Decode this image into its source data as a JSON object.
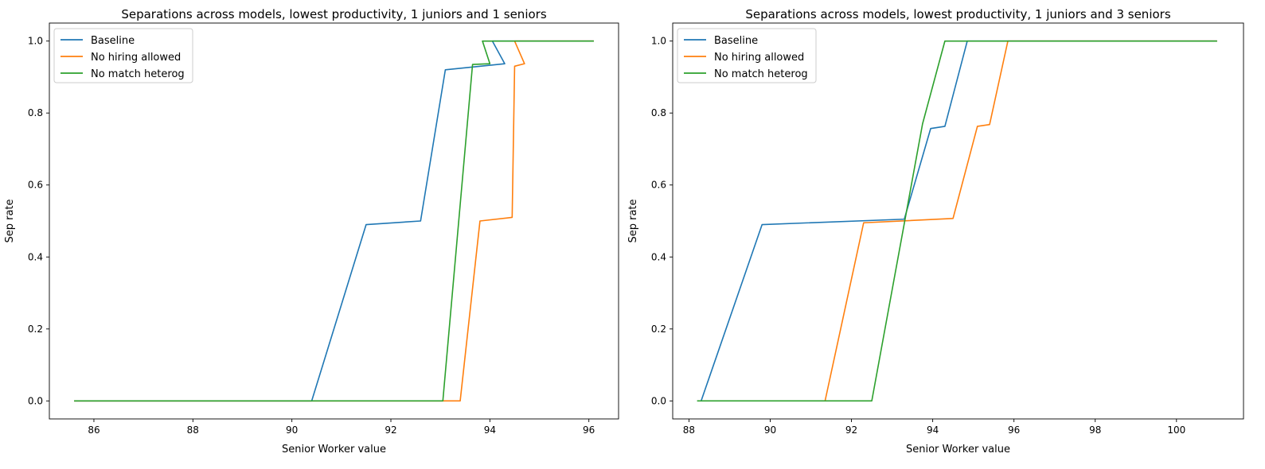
{
  "chart_data": [
    {
      "type": "line",
      "title": "Separations across models, lowest productivity, 1 juniors and 1 seniors",
      "xlabel": "Senior Worker value",
      "ylabel": "Sep rate",
      "xlim": [
        85.1,
        96.6
      ],
      "ylim": [
        -0.05,
        1.05
      ],
      "xticks": [
        86,
        88,
        90,
        92,
        94,
        96
      ],
      "xtick_labels": [
        "86",
        "88",
        "90",
        "92",
        "94",
        "96"
      ],
      "yticks": [
        0.0,
        0.2,
        0.4,
        0.6,
        0.8,
        1.0
      ],
      "ytick_labels": [
        "0.0",
        "0.2",
        "0.4",
        "0.6",
        "0.8",
        "1.0"
      ],
      "grid": false,
      "legend_position": "top-left",
      "series": [
        {
          "name": "Baseline",
          "color": "#1f77b4",
          "x": [
            85.6,
            90.4,
            91.5,
            92.6,
            93.1,
            94.3,
            94.05,
            94.4,
            96.1
          ],
          "y": [
            0.0,
            0.0,
            0.49,
            0.5,
            0.92,
            0.937,
            1.0,
            1.0,
            1.0
          ]
        },
        {
          "name": "No hiring allowed",
          "color": "#ff7f0e",
          "x": [
            85.6,
            93.4,
            93.8,
            94.45,
            94.5,
            94.7,
            94.5,
            94.6,
            96.1
          ],
          "y": [
            0.0,
            0.0,
            0.5,
            0.51,
            0.93,
            0.937,
            1.0,
            1.0,
            1.0
          ]
        },
        {
          "name": "No match heterog",
          "color": "#2ca02c",
          "x": [
            85.6,
            93.05,
            93.65,
            94.0,
            93.85,
            94.2,
            96.1
          ],
          "y": [
            0.0,
            0.0,
            0.935,
            0.937,
            1.0,
            1.0,
            1.0
          ]
        }
      ]
    },
    {
      "type": "line",
      "title": "Separations across models, lowest productivity, 1 juniors and 3 seniors",
      "xlabel": "Senior Worker value",
      "ylabel": "Sep rate",
      "xlim": [
        87.6,
        101.65
      ],
      "ylim": [
        -0.05,
        1.05
      ],
      "xticks": [
        88,
        90,
        92,
        94,
        96,
        98,
        100
      ],
      "xtick_labels": [
        "88",
        "90",
        "92",
        "94",
        "96",
        "98",
        "100"
      ],
      "yticks": [
        0.0,
        0.2,
        0.4,
        0.6,
        0.8,
        1.0
      ],
      "ytick_labels": [
        "0.0",
        "0.2",
        "0.4",
        "0.6",
        "0.8",
        "1.0"
      ],
      "grid": false,
      "legend_position": "top-left",
      "series": [
        {
          "name": "Baseline",
          "color": "#1f77b4",
          "x": [
            88.3,
            89.8,
            93.3,
            93.95,
            94.3,
            94.85,
            101.0
          ],
          "y": [
            0.0,
            0.49,
            0.505,
            0.757,
            0.763,
            1.0,
            1.0
          ]
        },
        {
          "name": "No hiring allowed",
          "color": "#ff7f0e",
          "x": [
            91.35,
            92.3,
            94.5,
            95.1,
            95.4,
            95.85,
            101.0
          ],
          "y": [
            0.0,
            0.495,
            0.507,
            0.763,
            0.768,
            1.0,
            1.0
          ]
        },
        {
          "name": "No match heterog",
          "color": "#2ca02c",
          "x": [
            88.2,
            92.5,
            93.75,
            94.3,
            101.0
          ],
          "y": [
            0.0,
            0.0,
            0.77,
            1.0,
            1.0
          ]
        }
      ]
    }
  ]
}
